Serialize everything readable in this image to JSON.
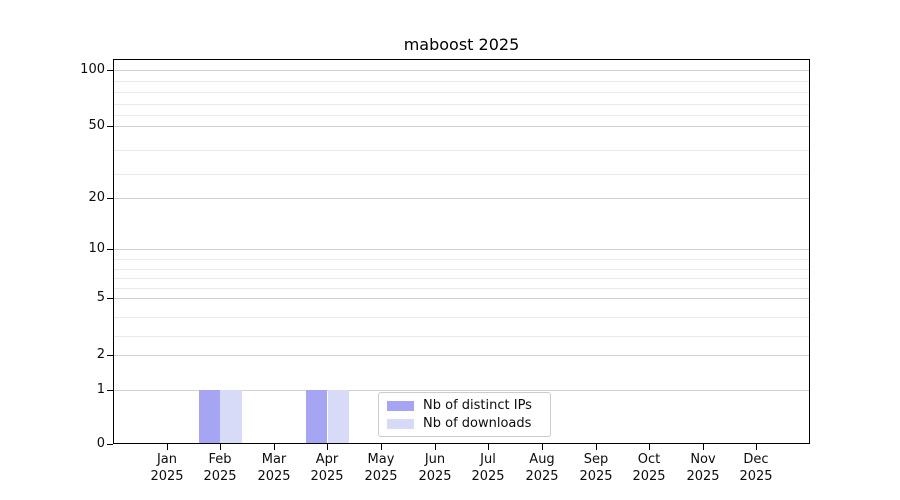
{
  "figure": {
    "background": "#ffffff"
  },
  "chart_data": {
    "type": "bar",
    "title": "maboost 2025",
    "categories": [
      "Jan 2025",
      "Feb 2025",
      "Mar 2025",
      "Apr 2025",
      "May 2025",
      "Jun 2025",
      "Jul 2025",
      "Aug 2025",
      "Sep 2025",
      "Oct 2025",
      "Nov 2025",
      "Dec 2025"
    ],
    "series": [
      {
        "name": "Nb of distinct IPs",
        "color": "#a5a5f4",
        "values": [
          0,
          1,
          0,
          1,
          0,
          0,
          0,
          0,
          0,
          0,
          0,
          0
        ]
      },
      {
        "name": "Nb of downloads",
        "color": "#d8dbf8",
        "values": [
          0,
          1,
          0,
          1,
          0,
          0,
          0,
          0,
          0,
          0,
          0,
          0
        ]
      }
    ],
    "xlabel": "",
    "ylabel": "",
    "yscale": "symlog (linear 0-1, log-like above)",
    "ylim": [
      0,
      113
    ],
    "y_ticks": [
      0,
      1,
      2,
      5,
      10,
      20,
      50,
      100
    ],
    "grid": "horizontal, major and minor",
    "legend_position": "lower center"
  },
  "y_axis": {
    "tick_values": [
      0,
      1,
      2,
      5,
      10,
      20,
      50,
      100
    ],
    "tick_labels": [
      "0",
      "1",
      "2",
      "5",
      "10",
      "20",
      "50",
      "100"
    ],
    "minor_tick_values": [
      3,
      4,
      6,
      7,
      8,
      9,
      30,
      40,
      60,
      70,
      80,
      90
    ]
  },
  "x_axis": {
    "tick_labels": [
      [
        "Jan",
        "2025"
      ],
      [
        "Feb",
        "2025"
      ],
      [
        "Mar",
        "2025"
      ],
      [
        "Apr",
        "2025"
      ],
      [
        "May",
        "2025"
      ],
      [
        "Jun",
        "2025"
      ],
      [
        "Jul",
        "2025"
      ],
      [
        "Aug",
        "2025"
      ],
      [
        "Sep",
        "2025"
      ],
      [
        "Oct",
        "2025"
      ],
      [
        "Nov",
        "2025"
      ],
      [
        "Dec",
        "2025"
      ]
    ]
  },
  "legend": {
    "items": [
      {
        "label": "Nb of distinct IPs",
        "color": "#a5a5f4"
      },
      {
        "label": "Nb of downloads",
        "color": "#d8dbf8"
      }
    ]
  },
  "colors": {
    "major_grid": "#d0d0d0",
    "minor_grid": "#eaeaea",
    "spine": "#000000",
    "legend_border": "#cccccc"
  }
}
